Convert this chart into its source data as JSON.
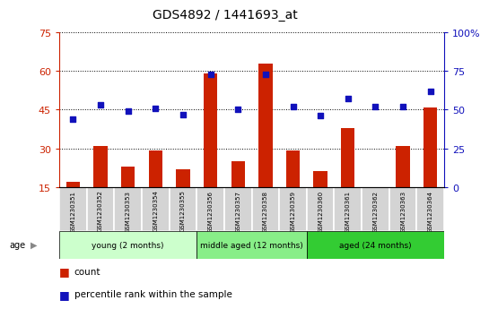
{
  "title": "GDS4892 / 1441693_at",
  "samples": [
    "GSM1230351",
    "GSM1230352",
    "GSM1230353",
    "GSM1230354",
    "GSM1230355",
    "GSM1230356",
    "GSM1230357",
    "GSM1230358",
    "GSM1230359",
    "GSM1230360",
    "GSM1230361",
    "GSM1230362",
    "GSM1230363",
    "GSM1230364"
  ],
  "counts": [
    17,
    31,
    23,
    29,
    22,
    59,
    25,
    63,
    29,
    21,
    38,
    14,
    31,
    46
  ],
  "percentiles": [
    44,
    53,
    49,
    51,
    47,
    73,
    50,
    73,
    52,
    46,
    57,
    52,
    52,
    62
  ],
  "bar_color": "#cc2200",
  "dot_color": "#1111bb",
  "ylim_left": [
    15,
    75
  ],
  "ylim_right": [
    0,
    100
  ],
  "yticks_left": [
    15,
    30,
    45,
    60,
    75
  ],
  "yticks_right": [
    0,
    25,
    50,
    75,
    100
  ],
  "groups": [
    {
      "label": "young (2 months)",
      "start": 0,
      "end": 5,
      "color": "#ccffcc"
    },
    {
      "label": "middle aged (12 months)",
      "start": 5,
      "end": 9,
      "color": "#88ee88"
    },
    {
      "label": "aged (24 months)",
      "start": 9,
      "end": 14,
      "color": "#33cc33"
    }
  ],
  "group_header": "age",
  "legend_count_label": "count",
  "legend_percentile_label": "percentile rank within the sample",
  "bar_bottom": 15,
  "bar_width": 0.5,
  "title_fontsize": 10,
  "sample_fontsize": 5.0,
  "group_fontsize": 6.5,
  "legend_fontsize": 7.5
}
